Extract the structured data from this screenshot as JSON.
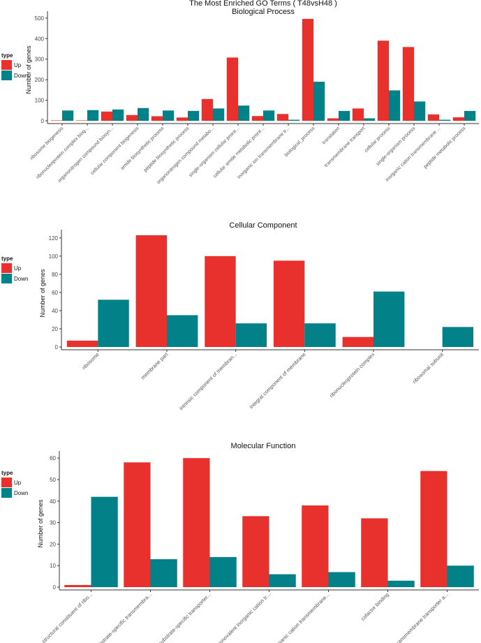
{
  "colors": {
    "Up": "#e8302c",
    "Down": "#038189"
  },
  "chart_data": [
    {
      "type": "bar",
      "title": "The Most Enriched GO Terms ( T48vsH48 )",
      "subtitle": "Biological Process",
      "ylabel": "Number of genes",
      "ylim": [
        0,
        520
      ],
      "yticks": [
        0,
        100,
        200,
        300,
        400,
        500
      ],
      "legend": {
        "title": "type",
        "entries": [
          "Up",
          "Down"
        ],
        "placement": "left"
      },
      "categories": [
        "ribosome biogenesis",
        "ribonucleoprotein complex biog...",
        "organonitrogen compound biosyn...",
        "cellular component biogenesis",
        "amide biosynthetic process",
        "peptide biosynthetic process",
        "organonitrogen compound metabo...",
        "single-organism cellular proce...",
        "cellular amide metabolic proce...",
        "inorganic ion transmembrane tr...",
        "biological_process",
        "translation",
        "transmembrane transport",
        "cellular process",
        "single-organism process",
        "inorganic cation transmembrane ...",
        "peptide metabolic process"
      ],
      "series": [
        {
          "name": "Up",
          "values": [
            2,
            2,
            45,
            28,
            22,
            16,
            106,
            308,
            23,
            33,
            496,
            12,
            60,
            390,
            359,
            31,
            17
          ]
        },
        {
          "name": "Down",
          "values": [
            50,
            52,
            55,
            62,
            50,
            48,
            60,
            74,
            50,
            5,
            190,
            48,
            12,
            148,
            94,
            5,
            48
          ]
        }
      ]
    },
    {
      "type": "bar",
      "subtitle": "Cellular Component",
      "ylabel": "Number of genes",
      "ylim": [
        0,
        126
      ],
      "yticks": [
        0,
        20,
        40,
        60,
        80,
        100,
        120
      ],
      "legend": {
        "title": "type",
        "entries": [
          "Up",
          "Down"
        ],
        "placement": "left"
      },
      "categories": [
        "ribosome",
        "membrane part",
        "intrinsic component of membran...",
        "integral component of membrane",
        "ribonucleoprotein complex",
        "ribosomal subunit"
      ],
      "series": [
        {
          "name": "Up",
          "values": [
            7,
            123,
            100,
            95,
            11,
            0
          ]
        },
        {
          "name": "Down",
          "values": [
            52,
            35,
            26,
            26,
            61,
            22
          ]
        }
      ]
    },
    {
      "type": "bar",
      "subtitle": "Molecular Function",
      "ylabel": "Number of genes",
      "ylim": [
        0,
        62
      ],
      "yticks": [
        0,
        10,
        20,
        30,
        40,
        50,
        60
      ],
      "legend": {
        "title": "type",
        "entries": [
          "Up",
          "Down"
        ],
        "placement": "left"
      },
      "categories": [
        "structural constituent of ribo...",
        "substrate-specific transmembra...",
        "substrate-specific transporter...",
        "monovalent inorganic cation tr...",
        "inorganic cation transmembrane...",
        "cofactor binding",
        "ion transmembrane transporter a..."
      ],
      "series": [
        {
          "name": "Up",
          "values": [
            1,
            58,
            60,
            33,
            38,
            32,
            54
          ]
        },
        {
          "name": "Down",
          "values": [
            42,
            13,
            14,
            6,
            7,
            3,
            10
          ]
        }
      ]
    }
  ]
}
